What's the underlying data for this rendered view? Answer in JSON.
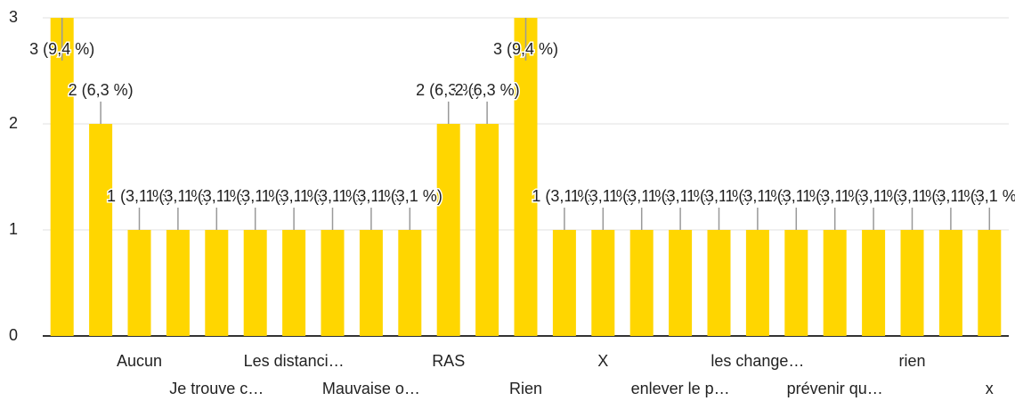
{
  "chart_data": {
    "type": "bar",
    "categories": [
      null,
      null,
      "Aucun",
      null,
      "Je trouve c…",
      null,
      "Les distanci…",
      null,
      "Mauvaise o…",
      null,
      "RAS",
      null,
      "Rien",
      null,
      "X",
      null,
      "enlever le p…",
      null,
      "les change…",
      null,
      "prévenir qu…",
      null,
      "rien",
      null,
      "x"
    ],
    "values": [
      3,
      2,
      1,
      1,
      1,
      1,
      1,
      1,
      1,
      1,
      2,
      2,
      3,
      1,
      1,
      1,
      1,
      1,
      1,
      1,
      1,
      1,
      1,
      1,
      1
    ],
    "value_labels": [
      "3 (9,4 %)",
      "2 (6,3 %)",
      "1 (3,1 %)",
      "1 (3,1 %)",
      "1 (3,1 %)",
      "1 (3,1 %)",
      "1 (3,1 %)",
      "1 (3,1 %)",
      "1 (3,1 %)",
      "1 (3,1 %)",
      "2 (6,3 %)",
      "2 (6,3 %)",
      "3 (9,4 %)",
      "1 (3,1 %)",
      "1 (3,1 %)",
      "1 (3,1 %)",
      "1 (3,1 %)",
      "1 (3,1 %)",
      "1 (3,1 %)",
      "1 (3,1 %)",
      "1 (3,1 %)",
      "1 (3,1 %)",
      "1 (3,1 %)",
      "1 (3,1 %)",
      "1 (3,1 %)"
    ],
    "color": "#ffd600",
    "ylim": [
      0,
      3
    ],
    "yticks": [
      0,
      1,
      2,
      3
    ],
    "grid": true
  }
}
